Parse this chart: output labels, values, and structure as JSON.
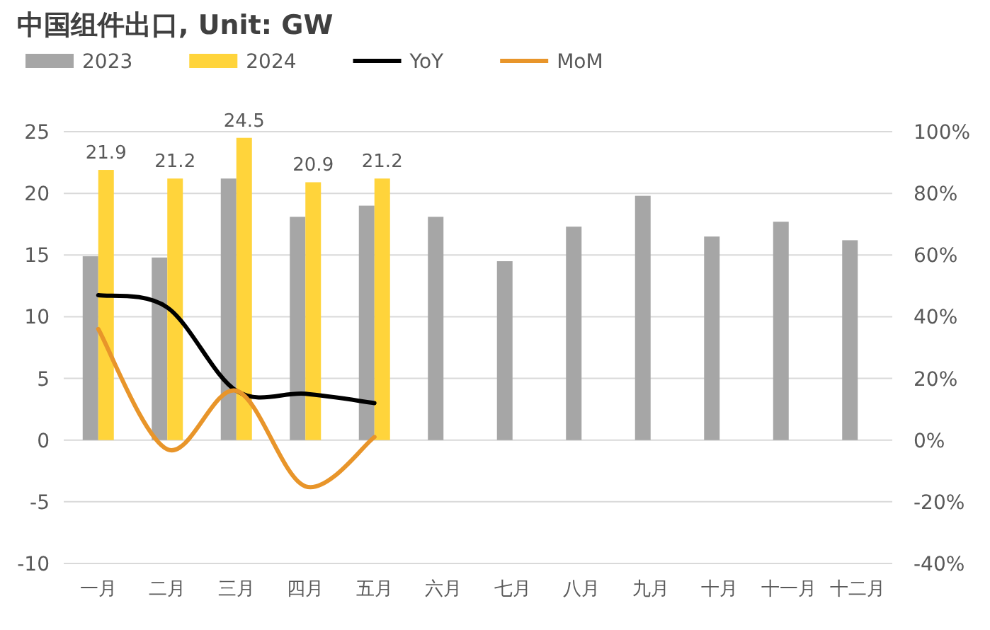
{
  "chart_data": {
    "type": "bar",
    "title": "中国组件出口, Unit: GW",
    "categories": [
      "一月",
      "二月",
      "三月",
      "四月",
      "五月",
      "六月",
      "七月",
      "八月",
      "九月",
      "十月",
      "十一月",
      "十二月"
    ],
    "series": [
      {
        "name": "2023",
        "color": "#a6a6a6",
        "values": [
          14.9,
          14.8,
          21.2,
          18.1,
          19.0,
          18.1,
          14.5,
          17.3,
          19.8,
          16.5,
          17.7,
          16.2
        ]
      },
      {
        "name": "2024",
        "color": "#ffd43b",
        "values": [
          21.9,
          21.2,
          24.5,
          20.9,
          21.2,
          null,
          null,
          null,
          null,
          null,
          null,
          null
        ],
        "value_labels": [
          "21.9",
          "21.2",
          "24.5",
          "20.9",
          "21.2",
          null,
          null,
          null,
          null,
          null,
          null,
          null
        ]
      },
      {
        "name": "YoY",
        "type": "line",
        "axis": "y2",
        "color": "#000000",
        "values": [
          47,
          43,
          16,
          15,
          12,
          null,
          null,
          null,
          null,
          null,
          null,
          null
        ]
      },
      {
        "name": "MoM",
        "type": "line",
        "axis": "y2",
        "color": "#e8952a",
        "values": [
          36,
          -3,
          16,
          -15,
          1,
          null,
          null,
          null,
          null,
          null,
          null,
          null
        ]
      }
    ],
    "ylim": [
      -10,
      25
    ],
    "yticks": [
      -10,
      -5,
      0,
      5,
      10,
      15,
      20,
      25
    ],
    "y2lim": [
      -40,
      100
    ],
    "y2ticks": [
      {
        "value": -40,
        "label": "-40%"
      },
      {
        "value": -20,
        "label": "-20%"
      },
      {
        "value": 0,
        "label": "0%"
      },
      {
        "value": 20,
        "label": "20%"
      },
      {
        "value": 40,
        "label": "40%"
      },
      {
        "value": 60,
        "label": "60%"
      },
      {
        "value": 80,
        "label": "80%"
      },
      {
        "value": 100,
        "label": "100%"
      }
    ],
    "grid": "y",
    "legend": "top"
  }
}
